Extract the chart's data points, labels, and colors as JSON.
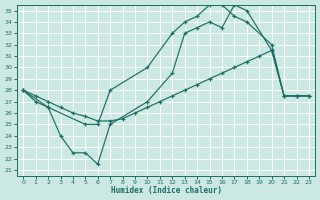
{
  "xlabel": "Humidex (Indice chaleur)",
  "bg_color": "#cce8e3",
  "grid_color": "#ffffff",
  "line_color": "#1a6e64",
  "xlim": [
    -0.5,
    23.5
  ],
  "ylim": [
    20.5,
    35.5
  ],
  "xticks": [
    0,
    1,
    2,
    3,
    4,
    5,
    6,
    7,
    8,
    9,
    10,
    11,
    12,
    13,
    14,
    15,
    16,
    17,
    18,
    19,
    20,
    21,
    22,
    23
  ],
  "yticks": [
    21,
    22,
    23,
    24,
    25,
    26,
    27,
    28,
    29,
    30,
    31,
    32,
    33,
    34,
    35
  ],
  "curve1_x": [
    0,
    1,
    2,
    3,
    4,
    5,
    6,
    7,
    10,
    12,
    13,
    14,
    15,
    16,
    17,
    18,
    20,
    21,
    22,
    23
  ],
  "curve1_y": [
    28,
    27,
    26.5,
    24,
    22.5,
    22.5,
    21.5,
    25,
    27,
    29.5,
    33,
    33.5,
    34,
    33.5,
    35.5,
    35,
    31.5,
    27.5,
    27.5,
    27.5
  ],
  "curve2_x": [
    0,
    2,
    5,
    6,
    7,
    10,
    12,
    13,
    14,
    15,
    16,
    17,
    18,
    20,
    21,
    22,
    23
  ],
  "curve2_y": [
    28,
    26.5,
    25,
    25,
    28,
    30,
    33,
    34,
    34.5,
    35.5,
    35.5,
    34.5,
    34,
    32,
    27.5,
    27.5,
    27.5
  ],
  "curve3_x": [
    0,
    1,
    2,
    3,
    4,
    5,
    6,
    7,
    8,
    9,
    10,
    11,
    12,
    13,
    14,
    15,
    16,
    17,
    18,
    19,
    20,
    21,
    22,
    23
  ],
  "curve3_y": [
    28,
    27.5,
    27,
    26.5,
    26,
    25.7,
    25.3,
    25.3,
    25.5,
    26,
    26.5,
    27,
    27.5,
    28,
    28.5,
    29,
    29.5,
    30,
    30.5,
    31,
    31.5,
    27.5,
    27.5,
    27.5
  ]
}
